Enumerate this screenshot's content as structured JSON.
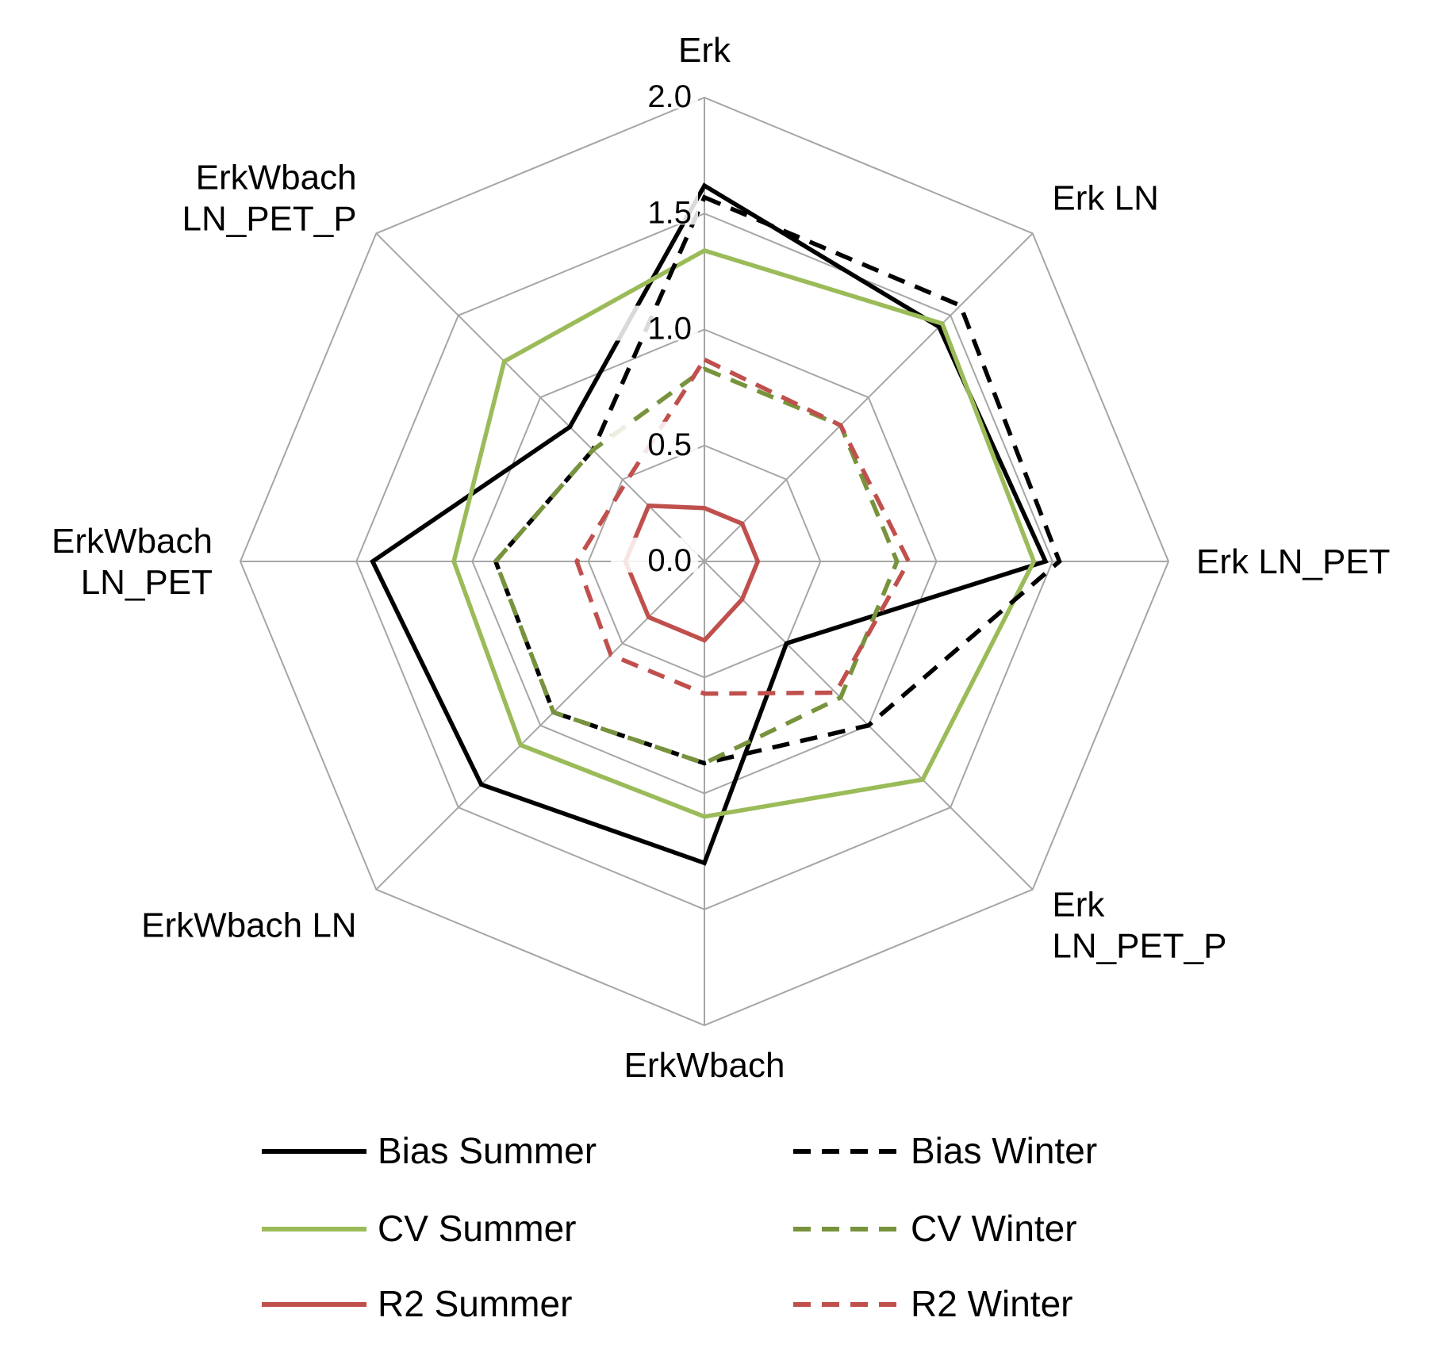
{
  "chart_data": {
    "type": "radar",
    "categories": [
      "Erk",
      "Erk LN",
      "Erk LN_PET",
      "Erk\nLN_PET_P",
      "ErkWbach",
      "ErkWbach LN",
      "ErkWbach\nLN_PET",
      "ErkWbach\nLN_PET_P"
    ],
    "rlim": [
      0,
      2.0
    ],
    "ticks": [
      "0.0",
      "0.5",
      "1.0",
      "1.5",
      "2.0"
    ],
    "grid": true,
    "legend_position": "bottom",
    "series": [
      {
        "name": "Bias Summer",
        "color": "#000000",
        "dash": false,
        "values": [
          1.62,
          1.43,
          1.47,
          0.5,
          1.3,
          1.36,
          1.43,
          0.82
        ]
      },
      {
        "name": "CV Summer",
        "color": "#9bbb59",
        "dash": false,
        "values": [
          1.34,
          1.45,
          1.42,
          1.33,
          1.1,
          1.12,
          1.08,
          1.22
        ]
      },
      {
        "name": "R2 Summer",
        "color": "#c0504d",
        "dash": false,
        "values": [
          0.23,
          0.23,
          0.23,
          0.23,
          0.34,
          0.34,
          0.34,
          0.34
        ]
      },
      {
        "name": "Bias Winter",
        "color": "#000000",
        "dash": true,
        "values": [
          1.57,
          1.56,
          1.53,
          1.0,
          0.87,
          0.92,
          0.9,
          0.68
        ]
      },
      {
        "name": "CV Winter",
        "color": "#77933c",
        "dash": true,
        "values": [
          0.83,
          0.83,
          0.83,
          0.83,
          0.87,
          0.92,
          0.9,
          0.68
        ]
      },
      {
        "name": "R2 Winter",
        "color": "#c0504d",
        "dash": true,
        "values": [
          0.87,
          0.83,
          0.88,
          0.8,
          0.57,
          0.57,
          0.55,
          0.48
        ]
      }
    ]
  }
}
